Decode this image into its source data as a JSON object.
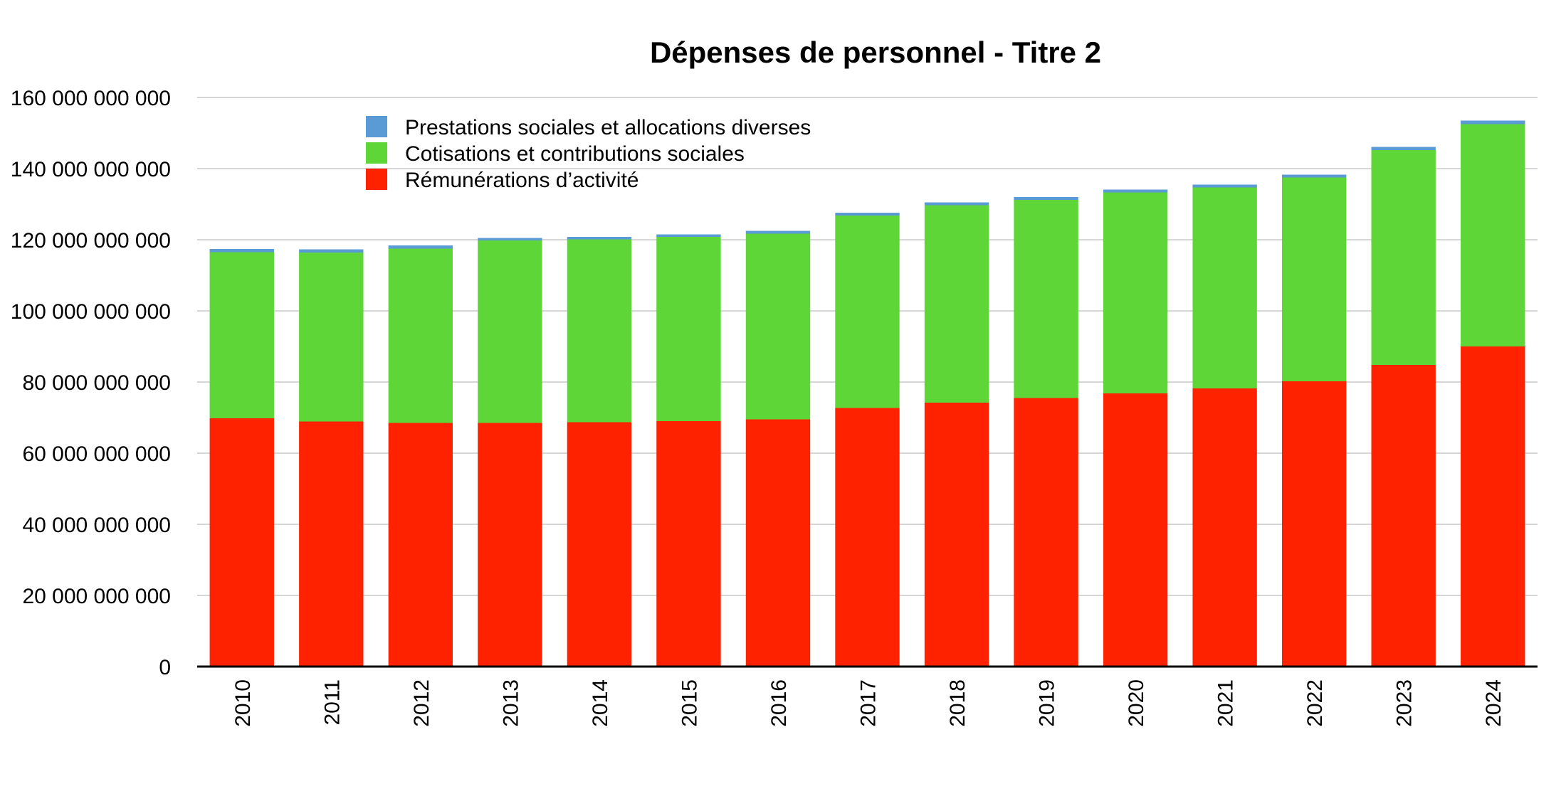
{
  "chart_data": {
    "type": "bar",
    "stacked": true,
    "title": "Dépenses de personnel - Titre 2",
    "xlabel": "",
    "ylabel": "",
    "categories": [
      "2010",
      "2011",
      "2012",
      "2013",
      "2014",
      "2015",
      "2016",
      "2017",
      "2018",
      "2019",
      "2020",
      "2021",
      "2022",
      "2023",
      "2024"
    ],
    "series": [
      {
        "name": "Rémunérations d’activité",
        "color": "#ff2200",
        "values": [
          69800000000,
          68900000000,
          68500000000,
          68500000000,
          68700000000,
          69000000000,
          69500000000,
          72700000000,
          74200000000,
          75500000000,
          76800000000,
          78200000000,
          80200000000,
          84800000000,
          90000000000
        ]
      },
      {
        "name": "Cotisations et contributions sociales",
        "color": "#5ed638",
        "values": [
          46700000000,
          47500000000,
          49000000000,
          51300000000,
          51400000000,
          51800000000,
          52200000000,
          54100000000,
          55500000000,
          55700000000,
          56500000000,
          56500000000,
          57300000000,
          60400000000,
          62500000000
        ]
      },
      {
        "name": "Prestations sociales et allocations diverses",
        "color": "#5b9bd5",
        "values": [
          900000000,
          900000000,
          900000000,
          700000000,
          700000000,
          700000000,
          800000000,
          800000000,
          800000000,
          800000000,
          800000000,
          800000000,
          800000000,
          900000000,
          1000000000
        ]
      }
    ],
    "legend_order": [
      2,
      1,
      0
    ],
    "ylim": [
      0,
      160000000000
    ],
    "yticks": [
      0,
      20000000000,
      40000000000,
      60000000000,
      80000000000,
      100000000000,
      120000000000,
      140000000000,
      160000000000
    ],
    "ytick_labels": [
      "0",
      "20 000 000 000",
      "40 000 000 000",
      "60 000 000 000",
      "80 000 000 000",
      "100 000 000 000",
      "120 000 000 000",
      "140 000 000 000",
      "160 000 000 000"
    ],
    "grid": true,
    "legend_position": "top-left",
    "xtick_rotation": "vertical"
  }
}
